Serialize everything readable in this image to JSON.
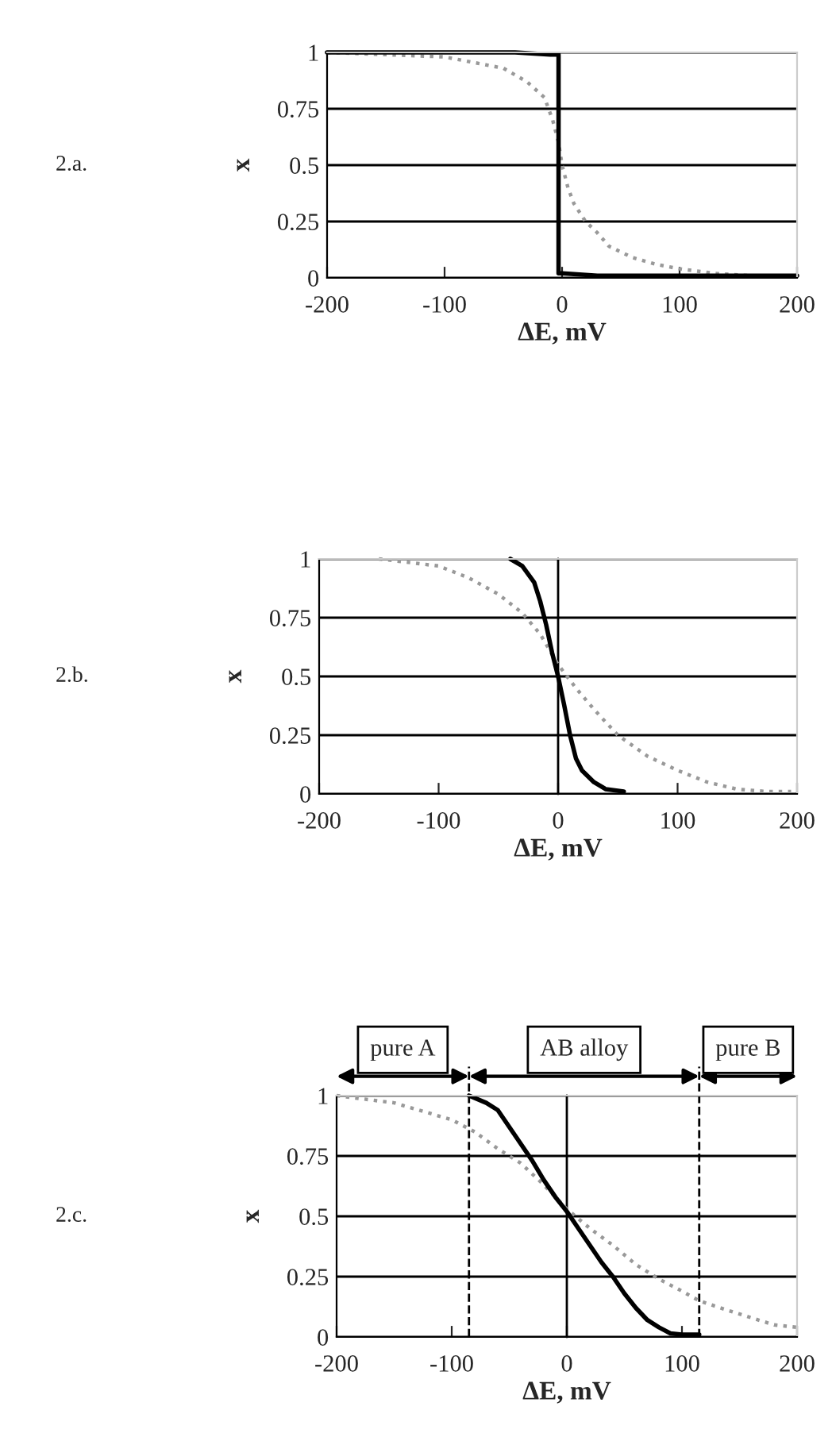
{
  "chart_data": [
    {
      "type": "line",
      "xlabel": "ΔE, mV",
      "ylabel": "x",
      "annotations": [
        "2.a."
      ],
      "xlim": [
        -200,
        200
      ],
      "xticks": [
        -200,
        -100,
        0,
        100,
        200
      ],
      "ylim": [
        0,
        1
      ],
      "yticks": [
        0,
        0.25,
        0.5,
        0.75,
        1
      ],
      "grid": "y",
      "legend": false,
      "series": [
        {
          "color": "#999999",
          "line_style": "dotted",
          "x": [
            -200,
            -100,
            -50,
            -30,
            -15,
            -8,
            -3,
            0,
            5,
            10,
            20,
            30,
            40,
            60,
            80,
            100,
            130,
            160,
            200
          ],
          "values": [
            1,
            0.98,
            0.93,
            0.87,
            0.8,
            0.7,
            0.6,
            0.5,
            0.4,
            0.33,
            0.25,
            0.2,
            0.14,
            0.09,
            0.06,
            0.04,
            0.02,
            0.01,
            0.01
          ]
        },
        {
          "color": "#000000",
          "line_style": "solid",
          "x": [
            -200,
            -40,
            -10,
            -3,
            -3,
            0,
            30,
            200
          ],
          "values": [
            1,
            1,
            0.99,
            0.99,
            0.02,
            0.02,
            0.01,
            0.01
          ]
        }
      ]
    },
    {
      "type": "line",
      "xlabel": "ΔE, mV",
      "ylabel": "x",
      "annotations": [
        "2.b."
      ],
      "xlim": [
        -200,
        200
      ],
      "xticks": [
        -200,
        -100,
        0,
        100,
        200
      ],
      "ylim": [
        0,
        1
      ],
      "yticks": [
        0,
        0.25,
        0.5,
        0.75,
        1
      ],
      "grid": "y",
      "legend": false,
      "ref_lines": [
        {
          "axis": "x",
          "value": 0,
          "color": "#000000",
          "line_style": "solid"
        }
      ],
      "series": [
        {
          "color": "#999999",
          "line_style": "dotted",
          "x": [
            -150,
            -100,
            -75,
            -50,
            -30,
            -15,
            0,
            15,
            30,
            50,
            75,
            100,
            125,
            150,
            175,
            195
          ],
          "values": [
            1,
            0.97,
            0.92,
            0.85,
            0.77,
            0.68,
            0.55,
            0.45,
            0.36,
            0.25,
            0.16,
            0.1,
            0.05,
            0.02,
            0.01,
            0.01
          ]
        },
        {
          "color": "#000000",
          "line_style": "solid",
          "x": [
            -40,
            -30,
            -20,
            -15,
            -10,
            -5,
            0,
            5,
            10,
            15,
            20,
            30,
            40,
            55
          ],
          "values": [
            1,
            0.97,
            0.9,
            0.82,
            0.72,
            0.6,
            0.5,
            0.38,
            0.25,
            0.15,
            0.1,
            0.05,
            0.02,
            0.01
          ]
        }
      ]
    },
    {
      "type": "line",
      "xlabel": "ΔE, mV",
      "ylabel": "x",
      "annotations": [
        "2.c.",
        "pure A",
        "AB alloy",
        "pure B"
      ],
      "xlim": [
        -200,
        200
      ],
      "xticks": [
        -200,
        -100,
        0,
        100,
        200
      ],
      "ylim": [
        0,
        1
      ],
      "yticks": [
        0,
        0.25,
        0.5,
        0.75,
        1
      ],
      "grid": "y",
      "legend": false,
      "ref_lines": [
        {
          "axis": "x",
          "value": 0,
          "color": "#000000",
          "line_style": "solid"
        },
        {
          "axis": "x",
          "value": -85,
          "color": "#000000",
          "line_style": "dashed"
        },
        {
          "axis": "x",
          "value": 115,
          "color": "#000000",
          "line_style": "dashed"
        }
      ],
      "series": [
        {
          "color": "#999999",
          "line_style": "dotted",
          "x": [
            -200,
            -150,
            -100,
            -80,
            -60,
            -40,
            -20,
            0,
            20,
            40,
            60,
            80,
            100,
            115,
            140,
            160,
            180,
            200
          ],
          "values": [
            1,
            0.97,
            0.9,
            0.85,
            0.78,
            0.72,
            0.63,
            0.53,
            0.45,
            0.38,
            0.3,
            0.24,
            0.19,
            0.15,
            0.11,
            0.08,
            0.05,
            0.04
          ]
        },
        {
          "color": "#000000",
          "line_style": "solid",
          "x": [
            -85,
            -70,
            -60,
            -50,
            -40,
            -30,
            -20,
            -10,
            0,
            10,
            20,
            30,
            40,
            50,
            60,
            70,
            80,
            90,
            100,
            115
          ],
          "values": [
            1,
            0.97,
            0.94,
            0.87,
            0.8,
            0.73,
            0.65,
            0.58,
            0.52,
            0.45,
            0.38,
            0.31,
            0.25,
            0.18,
            0.12,
            0.07,
            0.04,
            0.015,
            0.01,
            0.01
          ]
        }
      ]
    }
  ]
}
